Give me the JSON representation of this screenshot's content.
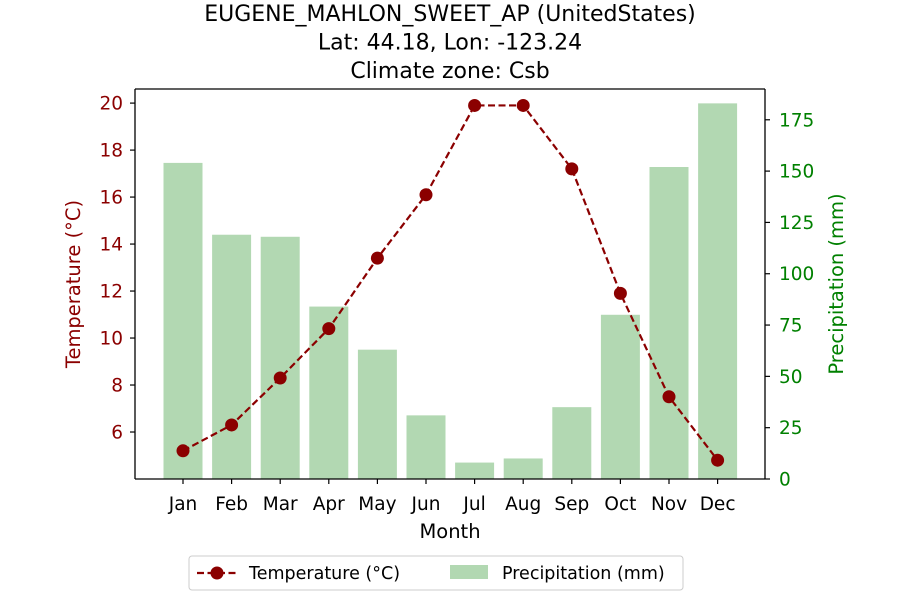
{
  "chart_data": {
    "type": "bar+line",
    "title_lines": [
      "EUGENE_MAHLON_SWEET_AP (UnitedStates)",
      "Lat: 44.18, Lon: -123.24",
      "Climate zone: Csb"
    ],
    "xlabel": "Month",
    "ylabel_left": "Temperature (°C)",
    "ylabel_right": "Precipitation (mm)",
    "categories": [
      "Jan",
      "Feb",
      "Mar",
      "Apr",
      "May",
      "Jun",
      "Jul",
      "Aug",
      "Sep",
      "Oct",
      "Nov",
      "Dec"
    ],
    "series": [
      {
        "name": "Temperature (°C)",
        "kind": "line",
        "axis": "left",
        "color": "#8b0000",
        "linestyle": "dashed",
        "marker": "circle",
        "values": [
          5.2,
          6.3,
          8.3,
          10.4,
          13.4,
          16.1,
          19.9,
          19.9,
          17.2,
          11.9,
          7.5,
          4.8
        ]
      },
      {
        "name": "Precipitation (mm)",
        "kind": "bar",
        "axis": "right",
        "color": "#b2d8b2",
        "values": [
          154,
          119,
          118,
          84,
          63,
          31,
          8,
          10,
          35,
          80,
          152,
          183
        ]
      }
    ],
    "ylim_left": [
      4.0,
      20.6
    ],
    "ylim_right": [
      0,
      190
    ],
    "yticks_left": [
      "6",
      "8",
      "10",
      "12",
      "14",
      "16",
      "18",
      "20"
    ],
    "yticks_right": [
      "0",
      "25",
      "50",
      "75",
      "100",
      "125",
      "150",
      "175"
    ],
    "left_axis_color": "#8b0000",
    "right_axis_color": "#008000",
    "grid": false,
    "legend_placement": "bottom-center"
  }
}
